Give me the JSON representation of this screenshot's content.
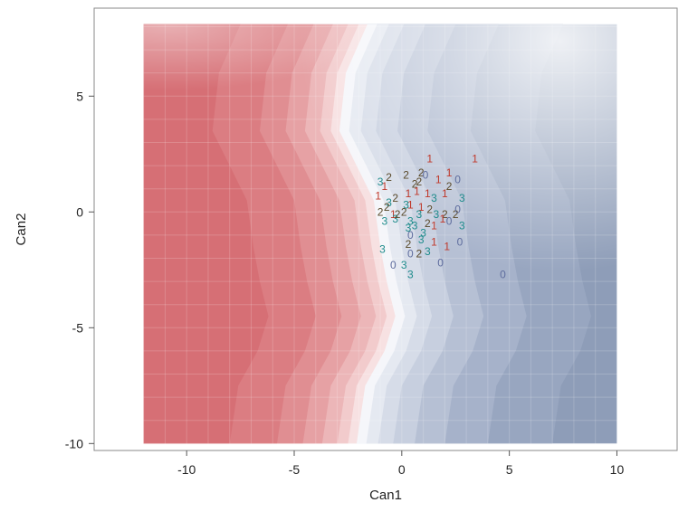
{
  "chart_data": {
    "type": "scatter",
    "subtype": "canonical discriminant plot with filled classification-region contours",
    "xlabel": "Can1",
    "ylabel": "Can2",
    "xlim": [
      -14.3,
      12.8
    ],
    "ylim": [
      -10.3,
      8.8
    ],
    "xticks": [
      -10,
      -5,
      0,
      5,
      10
    ],
    "yticks": [
      -10,
      -5,
      0,
      5
    ],
    "xtick_labels": [
      "-10",
      "-5",
      "0",
      "5",
      "10"
    ],
    "ytick_labels": [
      "-10",
      "-5",
      "0",
      "5"
    ],
    "grid": true,
    "legend": "none",
    "region_extent": {
      "x": [
        -12,
        10
      ],
      "y": [
        -10,
        8.1
      ]
    },
    "colors": {
      "region_a": "#d0646a",
      "region_mid": "#f4f5f9",
      "region_b": "#8e9db8",
      "frame": "#8a8a8a",
      "group_0": "#5f6d9e",
      "group_1": "#c0392b",
      "group_2": "#5a4a2a",
      "group_3": "#1f8c8c"
    },
    "groups": [
      "0",
      "1",
      "2",
      "3"
    ],
    "points": [
      {
        "x": -1.0,
        "y": 1.3,
        "label": "3"
      },
      {
        "x": -0.6,
        "y": 1.5,
        "label": "2"
      },
      {
        "x": -0.8,
        "y": 1.1,
        "label": "1"
      },
      {
        "x": -1.1,
        "y": 0.7,
        "label": "1"
      },
      {
        "x": -0.6,
        "y": 0.4,
        "label": "3"
      },
      {
        "x": -0.3,
        "y": 0.6,
        "label": "2"
      },
      {
        "x": -1.0,
        "y": 0.0,
        "label": "2"
      },
      {
        "x": -0.7,
        "y": 0.2,
        "label": "2"
      },
      {
        "x": -0.4,
        "y": -0.1,
        "label": "1"
      },
      {
        "x": -0.8,
        "y": -0.4,
        "label": "3"
      },
      {
        "x": -0.3,
        "y": -0.3,
        "label": "3"
      },
      {
        "x": -0.2,
        "y": -0.1,
        "label": "2"
      },
      {
        "x": 0.1,
        "y": 0.0,
        "label": "2"
      },
      {
        "x": 0.2,
        "y": 0.3,
        "label": "3"
      },
      {
        "x": 0.2,
        "y": 1.6,
        "label": "2"
      },
      {
        "x": 0.6,
        "y": 1.2,
        "label": "2"
      },
      {
        "x": 0.8,
        "y": 1.3,
        "label": "2"
      },
      {
        "x": 0.9,
        "y": 1.7,
        "label": "2"
      },
      {
        "x": 0.7,
        "y": 0.9,
        "label": "1"
      },
      {
        "x": 0.3,
        "y": 0.8,
        "label": "1"
      },
      {
        "x": 1.1,
        "y": 1.6,
        "label": "0"
      },
      {
        "x": 1.3,
        "y": 2.3,
        "label": "1"
      },
      {
        "x": 1.7,
        "y": 1.4,
        "label": "1"
      },
      {
        "x": 2.2,
        "y": 1.7,
        "label": "1"
      },
      {
        "x": 2.6,
        "y": 1.4,
        "label": "0"
      },
      {
        "x": 3.4,
        "y": 2.3,
        "label": "1"
      },
      {
        "x": 2.0,
        "y": 0.8,
        "label": "1"
      },
      {
        "x": 2.2,
        "y": 1.1,
        "label": "2"
      },
      {
        "x": 1.5,
        "y": 0.6,
        "label": "3"
      },
      {
        "x": 1.2,
        "y": 0.8,
        "label": "1"
      },
      {
        "x": 2.8,
        "y": 0.6,
        "label": "3"
      },
      {
        "x": 0.4,
        "y": 0.3,
        "label": "1"
      },
      {
        "x": 0.9,
        "y": 0.2,
        "label": "1"
      },
      {
        "x": 1.3,
        "y": 0.1,
        "label": "2"
      },
      {
        "x": 0.8,
        "y": -0.1,
        "label": "3"
      },
      {
        "x": 1.6,
        "y": -0.1,
        "label": "3"
      },
      {
        "x": 2.0,
        "y": -0.1,
        "label": "2"
      },
      {
        "x": 2.5,
        "y": -0.1,
        "label": "2"
      },
      {
        "x": 2.6,
        "y": 0.1,
        "label": "0"
      },
      {
        "x": 2.2,
        "y": -0.4,
        "label": "0"
      },
      {
        "x": 1.9,
        "y": -0.3,
        "label": "1"
      },
      {
        "x": 1.2,
        "y": -0.5,
        "label": "2"
      },
      {
        "x": 0.4,
        "y": -0.4,
        "label": "3"
      },
      {
        "x": 0.3,
        "y": -0.7,
        "label": "3"
      },
      {
        "x": 0.4,
        "y": -1.0,
        "label": "0"
      },
      {
        "x": 0.6,
        "y": -0.6,
        "label": "3"
      },
      {
        "x": 1.0,
        "y": -0.9,
        "label": "3"
      },
      {
        "x": 1.5,
        "y": -0.6,
        "label": "1"
      },
      {
        "x": 2.8,
        "y": -0.6,
        "label": "3"
      },
      {
        "x": 2.7,
        "y": -1.3,
        "label": "0"
      },
      {
        "x": 2.1,
        "y": -1.5,
        "label": "1"
      },
      {
        "x": 1.5,
        "y": -1.3,
        "label": "1"
      },
      {
        "x": 0.9,
        "y": -1.2,
        "label": "3"
      },
      {
        "x": 0.3,
        "y": -1.4,
        "label": "2"
      },
      {
        "x": 0.4,
        "y": -1.8,
        "label": "0"
      },
      {
        "x": 0.8,
        "y": -1.8,
        "label": "2"
      },
      {
        "x": 1.2,
        "y": -1.7,
        "label": "3"
      },
      {
        "x": -0.9,
        "y": -1.6,
        "label": "3"
      },
      {
        "x": -0.4,
        "y": -2.3,
        "label": "0"
      },
      {
        "x": 0.1,
        "y": -2.3,
        "label": "3"
      },
      {
        "x": 0.4,
        "y": -2.7,
        "label": "3"
      },
      {
        "x": 1.8,
        "y": -2.2,
        "label": "0"
      },
      {
        "x": 4.7,
        "y": -2.7,
        "label": "0"
      }
    ]
  }
}
